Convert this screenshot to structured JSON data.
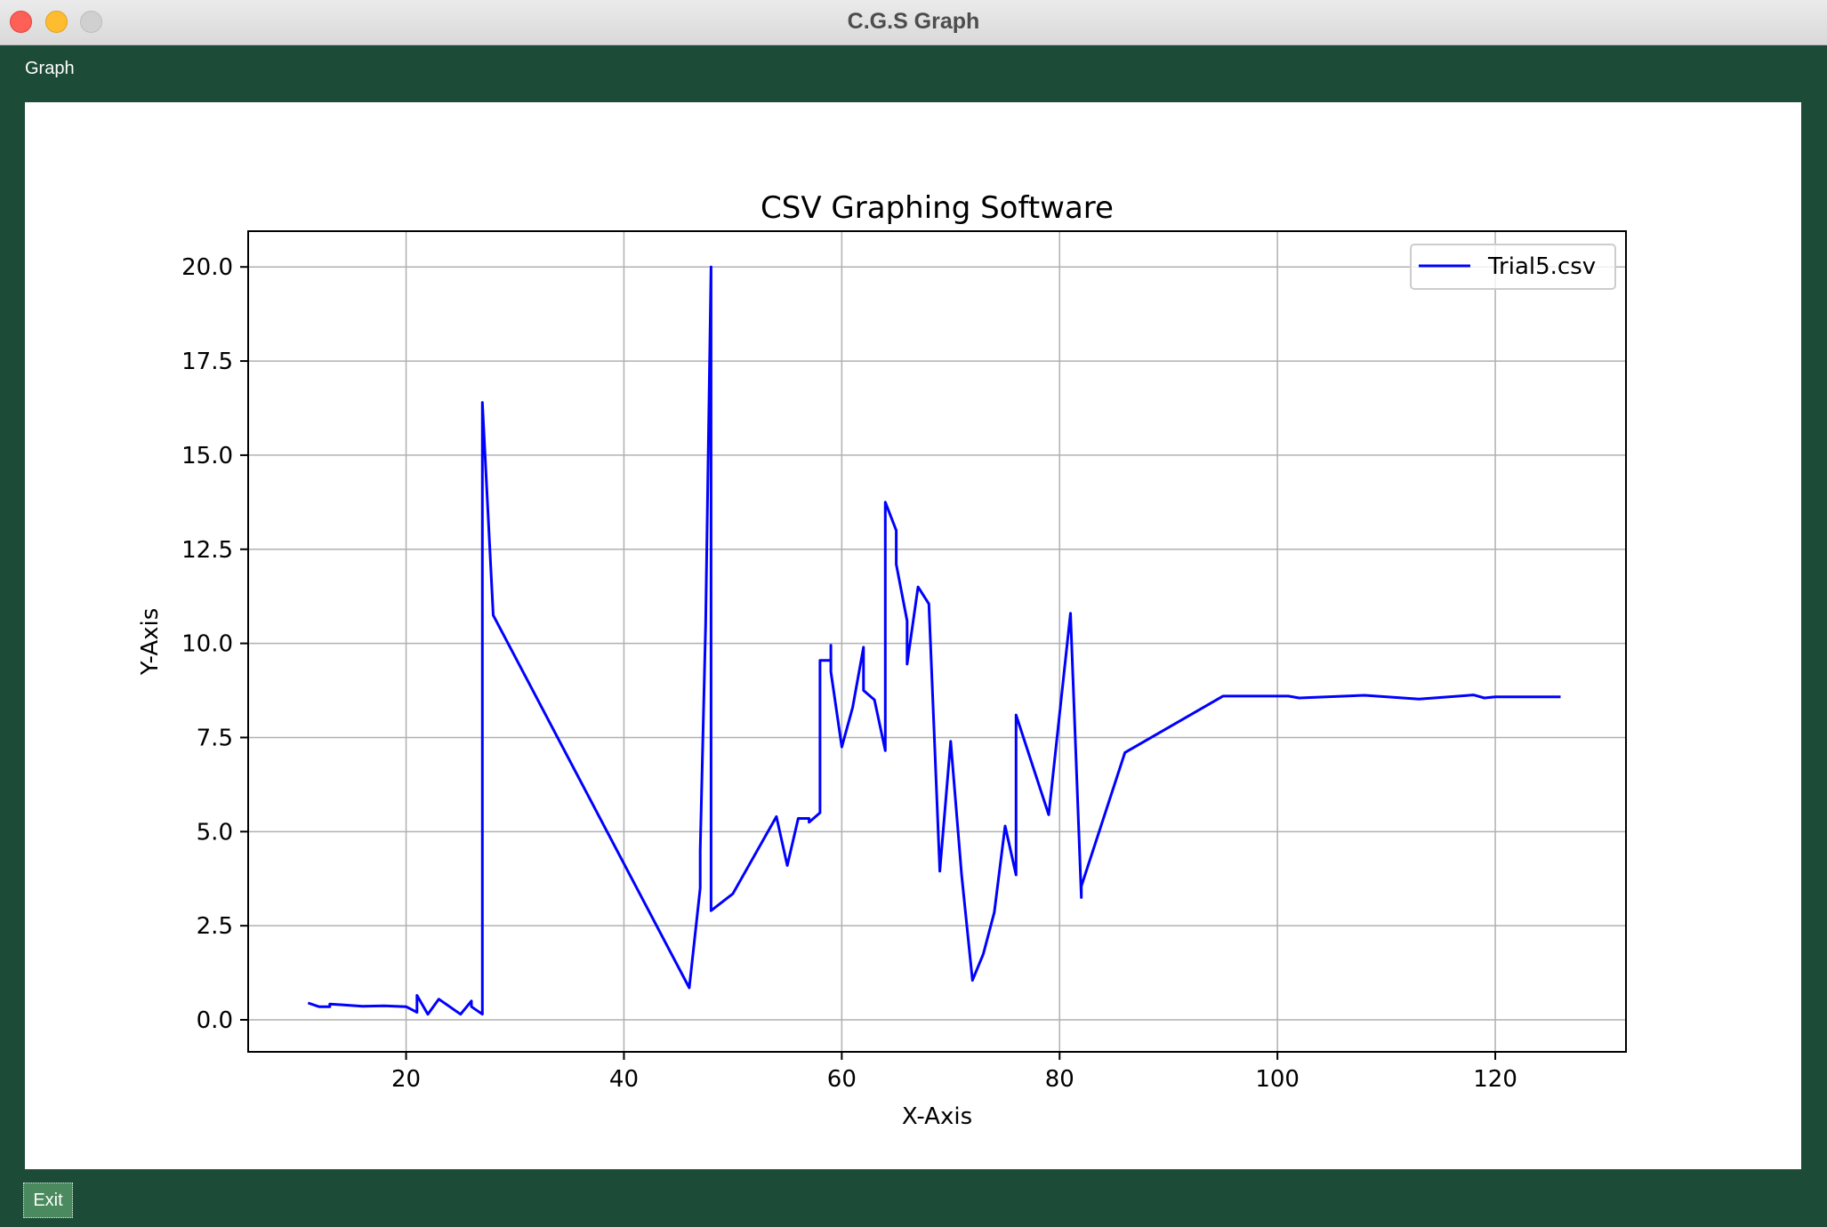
{
  "window": {
    "title": "C.G.S Graph"
  },
  "menu": {
    "graph_label": "Graph"
  },
  "footer": {
    "exit_label": "Exit"
  },
  "colors": {
    "background": "#1c4b37",
    "line": "#0000ff"
  },
  "chart_data": {
    "type": "line",
    "title": "CSV Graphing Software",
    "xlabel": "X-Axis",
    "ylabel": "Y-Axis",
    "xlim": [
      5.5,
      132
    ],
    "ylim": [
      -0.85,
      20.95
    ],
    "xticks": [
      20,
      40,
      60,
      80,
      100,
      120
    ],
    "xtick_labels": [
      "20",
      "40",
      "60",
      "80",
      "100",
      "120"
    ],
    "yticks": [
      0,
      2.5,
      5,
      7.5,
      10,
      12.5,
      15,
      17.5,
      20
    ],
    "ytick_labels": [
      "0.0",
      "2.5",
      "5.0",
      "7.5",
      "10.0",
      "12.5",
      "15.0",
      "17.5",
      "20.0"
    ],
    "grid": true,
    "legend_position": "top-right",
    "series": [
      {
        "name": "Trial5.csv",
        "color": "#0000ff",
        "x": [
          11,
          12,
          13,
          13,
          16,
          18,
          20,
          21,
          21,
          22,
          23,
          25,
          26,
          26,
          27,
          27,
          28,
          46,
          47,
          47,
          47.5,
          48,
          48,
          50,
          54,
          55,
          56,
          57,
          57,
          58,
          58,
          59,
          59,
          59,
          60,
          61,
          62,
          62,
          63,
          64,
          64,
          65,
          65,
          66,
          66,
          67,
          68,
          69,
          70,
          71,
          72,
          73,
          74,
          75,
          76,
          76,
          79,
          81,
          82,
          82,
          86,
          95,
          101,
          102,
          108,
          113,
          118,
          119,
          120,
          126
        ],
        "y": [
          0.45,
          0.35,
          0.35,
          0.42,
          0.36,
          0.37,
          0.35,
          0.2,
          0.65,
          0.15,
          0.55,
          0.15,
          0.5,
          0.35,
          0.15,
          16.4,
          10.75,
          0.85,
          3.5,
          4.5,
          10.5,
          20.0,
          2.9,
          3.35,
          5.4,
          4.1,
          5.35,
          5.35,
          5.25,
          5.5,
          9.55,
          9.55,
          9.95,
          9.25,
          7.25,
          8.3,
          9.9,
          8.75,
          8.5,
          7.15,
          13.75,
          13.0,
          12.1,
          10.6,
          9.45,
          11.5,
          11.05,
          3.95,
          7.4,
          3.85,
          1.05,
          1.75,
          2.85,
          5.15,
          3.85,
          8.1,
          5.45,
          10.8,
          3.25,
          3.55,
          7.1,
          8.6,
          8.6,
          8.55,
          8.62,
          8.52,
          8.63,
          8.55,
          8.58,
          8.58
        ]
      }
    ]
  }
}
